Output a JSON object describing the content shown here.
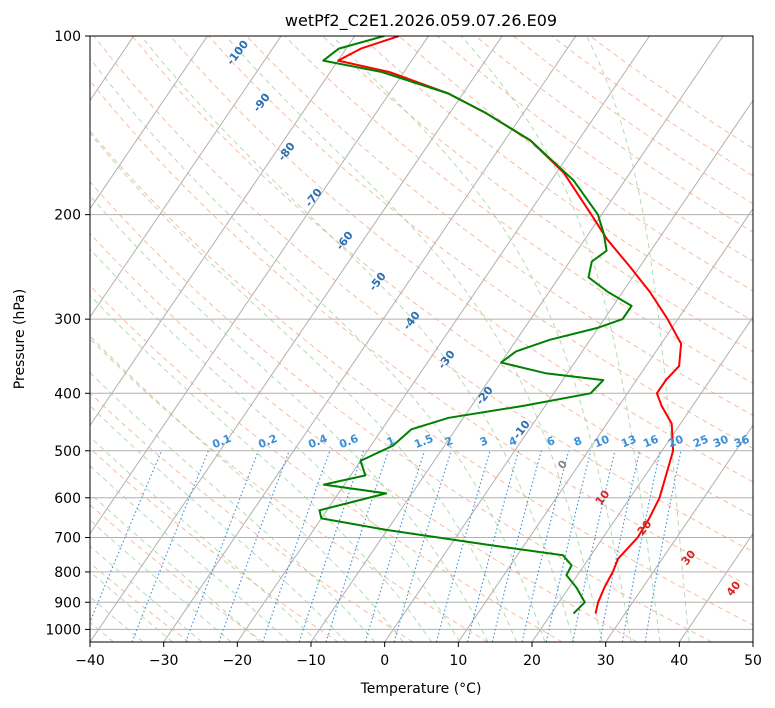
{
  "chart_data": {
    "type": "line",
    "title": "wetPf2_C2E1.2026.059.07.26.E09",
    "xlabel": "Temperature (°C)",
    "ylabel": "Pressure (hPa)",
    "xlim": [
      -40,
      50
    ],
    "ylim": [
      1050,
      100
    ],
    "y_scale": "log",
    "skew": "skew-T log-p",
    "grid": true,
    "xticks": [
      "−40",
      "−30",
      "−20",
      "−10",
      "0",
      "10",
      "20",
      "30",
      "40",
      "50"
    ],
    "yticks": [
      "100",
      "200",
      "300",
      "400",
      "500",
      "600",
      "700",
      "800",
      "900",
      "1000"
    ],
    "dry_adiabat_labels": [
      "-100",
      "-90",
      "-80",
      "-70",
      "-60",
      "-50",
      "-40",
      "-30",
      "-20",
      "-10",
      "0",
      "10",
      "20",
      "30",
      "40"
    ],
    "mixing_ratio_labels": [
      "0.1",
      "0.2",
      "0.4",
      "0.6",
      "1",
      "1.5",
      "2",
      "3",
      "4",
      "6",
      "8",
      "10",
      "13",
      "16",
      "20",
      "25",
      "30",
      "36"
    ],
    "series": [
      {
        "color": "#ff0000",
        "points": [
          [
            26.0,
            940
          ],
          [
            25.3,
            900
          ],
          [
            24.8,
            850
          ],
          [
            24.5,
            800
          ],
          [
            24.0,
            760
          ],
          [
            24.7,
            700
          ],
          [
            24.5,
            650
          ],
          [
            24.0,
            600
          ],
          [
            22.8,
            550
          ],
          [
            21.5,
            500
          ],
          [
            18.8,
            450
          ],
          [
            15.8,
            420
          ],
          [
            14.0,
            400
          ],
          [
            14.0,
            380
          ],
          [
            14.5,
            360
          ],
          [
            12.7,
            330
          ],
          [
            8.6,
            300
          ],
          [
            3.7,
            270
          ],
          [
            -1.3,
            245
          ],
          [
            -7.0,
            220
          ],
          [
            -11.4,
            200
          ],
          [
            -19.0,
            170
          ],
          [
            -26.5,
            150
          ],
          [
            -35.0,
            135
          ],
          [
            -42.0,
            125
          ],
          [
            -52.0,
            115
          ],
          [
            -60.0,
            110
          ],
          [
            -58.0,
            105
          ],
          [
            -54.0,
            100
          ]
        ]
      },
      {
        "color": "#008000",
        "points": [
          [
            23.0,
            940
          ],
          [
            23.5,
            900
          ],
          [
            21.0,
            850
          ],
          [
            18.5,
            810
          ],
          [
            18.3,
            780
          ],
          [
            16.2,
            750
          ],
          [
            5.0,
            720
          ],
          [
            -10.0,
            680
          ],
          [
            -20.0,
            650
          ],
          [
            -21.0,
            630
          ],
          [
            -13.5,
            590
          ],
          [
            -22.8,
            570
          ],
          [
            -18.0,
            550
          ],
          [
            -20.0,
            520
          ],
          [
            -17.0,
            490
          ],
          [
            -16.0,
            460
          ],
          [
            -12.0,
            440
          ],
          [
            -3.0,
            420
          ],
          [
            5.0,
            400
          ],
          [
            5.5,
            380
          ],
          [
            -3.0,
            370
          ],
          [
            -10.0,
            355
          ],
          [
            -9.0,
            340
          ],
          [
            -5.5,
            325
          ],
          [
            0.0,
            310
          ],
          [
            2.5,
            300
          ],
          [
            2.5,
            285
          ],
          [
            -2.0,
            270
          ],
          [
            -6.0,
            255
          ],
          [
            -7.0,
            240
          ],
          [
            -6.0,
            230
          ],
          [
            -8.0,
            215
          ],
          [
            -10.5,
            200
          ],
          [
            -17.0,
            175
          ],
          [
            -26.5,
            150
          ],
          [
            -35.0,
            135
          ],
          [
            -42.0,
            125
          ],
          [
            -53.0,
            115
          ],
          [
            -62.0,
            110
          ],
          [
            -61.0,
            105
          ],
          [
            -56.0,
            100
          ]
        ]
      }
    ]
  }
}
